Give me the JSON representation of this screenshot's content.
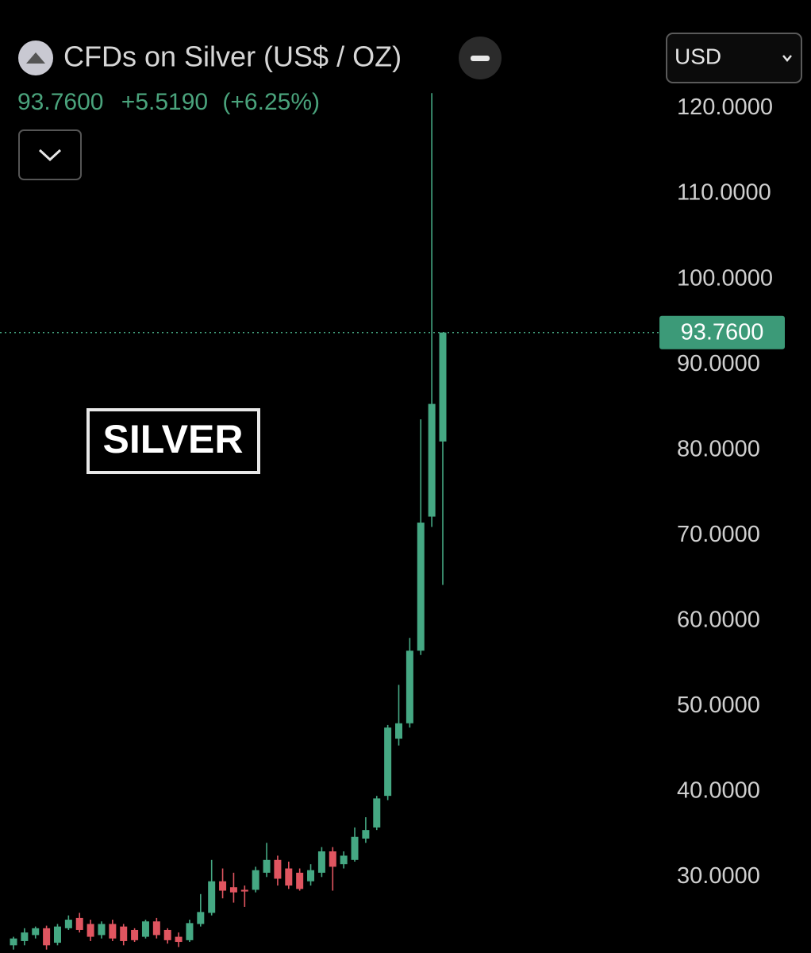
{
  "header": {
    "title": "CFDs on Silver (US$ / OZ)",
    "change": "+5.5190",
    "change_pct": "(+6.25%)",
    "currency": "USD"
  },
  "chart_data": {
    "type": "candlestick",
    "annotation": "SILVER",
    "series": [
      {
        "name": "Silver",
        "up_color": "#45a883",
        "down_color": "#e05560",
        "open": [
          22.0,
          22.5,
          23.2,
          24.0,
          22.3,
          24.0,
          25.2,
          24.5,
          23.2,
          24.5,
          24.2,
          23.8,
          23.0,
          24.8,
          23.8,
          23.0,
          22.6,
          24.5,
          25.8,
          29.5,
          28.8,
          28.5,
          28.5,
          30.5,
          32.0,
          31.0,
          30.5,
          29.5,
          30.5,
          33.0,
          31.5,
          32.0,
          34.5,
          35.8,
          39.5,
          46.2,
          48.0,
          56.5,
          72.2,
          81.0
        ],
        "high": [
          23.0,
          24.0,
          24.2,
          24.3,
          24.5,
          25.5,
          25.8,
          25.0,
          24.8,
          25.0,
          24.5,
          24.0,
          25.0,
          25.2,
          24.0,
          23.5,
          25.0,
          28.0,
          32.0,
          31.0,
          30.5,
          29.0,
          31.2,
          34.0,
          32.5,
          31.8,
          31.0,
          31.5,
          33.5,
          33.5,
          33.0,
          35.8,
          37.0,
          39.5,
          47.8,
          52.5,
          58.0,
          83.6,
          121.8,
          93.76
        ],
        "low": [
          21.5,
          22.0,
          22.8,
          21.5,
          22.0,
          23.8,
          23.5,
          22.5,
          22.8,
          22.5,
          22.0,
          22.4,
          22.8,
          22.8,
          22.2,
          21.8,
          22.4,
          24.2,
          25.5,
          27.5,
          27.0,
          26.5,
          28.2,
          30.0,
          29.0,
          28.6,
          28.4,
          29.0,
          30.0,
          28.4,
          31.0,
          31.8,
          34.0,
          35.5,
          39.0,
          45.4,
          47.5,
          56.0,
          71.0,
          64.2
        ],
        "close": [
          22.8,
          23.5,
          24.0,
          22.0,
          24.2,
          25.0,
          23.8,
          23.0,
          24.5,
          22.8,
          22.5,
          22.6,
          24.8,
          23.2,
          22.6,
          22.4,
          24.6,
          25.9,
          29.5,
          28.4,
          28.2,
          28.3,
          30.8,
          32.0,
          29.8,
          29.0,
          28.6,
          30.8,
          33.0,
          31.2,
          32.5,
          34.7,
          35.5,
          39.2,
          47.5,
          48.0,
          56.5,
          71.5,
          85.4,
          93.76
        ]
      }
    ],
    "price_line": {
      "value": 93.76,
      "label": "93.7600"
    },
    "ylim": [
      21.1,
      132.7
    ],
    "yticks": [
      {
        "value": 30,
        "label": "30.0000"
      },
      {
        "value": 40,
        "label": "40.0000"
      },
      {
        "value": 50,
        "label": "50.0000"
      },
      {
        "value": 60,
        "label": "60.0000"
      },
      {
        "value": 70,
        "label": "70.0000"
      },
      {
        "value": 80,
        "label": "80.0000"
      },
      {
        "value": 90,
        "label": "90.0000"
      },
      {
        "value": 100,
        "label": "100.0000"
      },
      {
        "value": 110,
        "label": "110.0000"
      },
      {
        "value": 120,
        "label": "120.0000"
      }
    ]
  }
}
